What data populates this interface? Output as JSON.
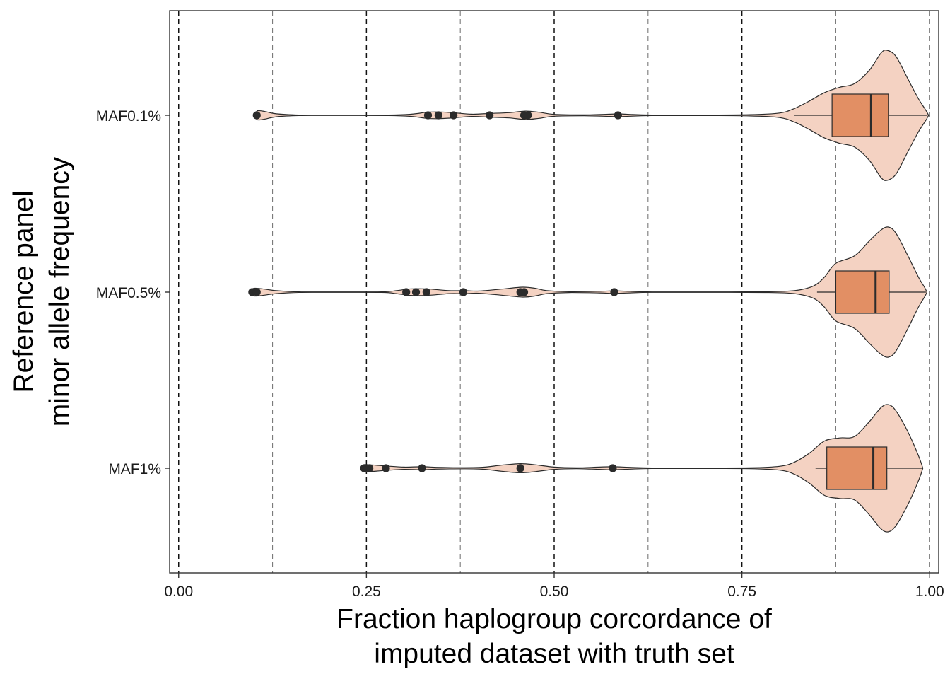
{
  "chart_data": {
    "type": "violin",
    "orientation": "horizontal",
    "xlabel": [
      "Fraction haplogroup corcordance of",
      "imputed dataset with truth set"
    ],
    "ylabel": [
      "Reference panel",
      "minor allele frequency"
    ],
    "xlim": [
      -0.012,
      1.012
    ],
    "x_ticks": [
      0.0,
      0.25,
      0.5,
      0.75,
      1.0
    ],
    "x_tick_labels": [
      "0.00",
      "0.25",
      "0.50",
      "0.75",
      "1.00"
    ],
    "major_gridlines": [
      0.0,
      0.25,
      0.5,
      0.75,
      1.0
    ],
    "minor_gridlines": [
      0.125,
      0.375,
      0.625,
      0.875
    ],
    "grid": "dashed vertical",
    "categories": [
      "MAF0.1%",
      "MAF0.5%",
      "MAF1%"
    ],
    "colors": {
      "violin_fill": "#f4d2c2",
      "box_fill": "#e28f64",
      "outline": "#2b2b2b",
      "point": "#2b2b2b"
    },
    "series": [
      {
        "category": "MAF0.1%",
        "violin_extent": [
          0.102,
          0.997
        ],
        "box": {
          "whisker_low": 0.82,
          "q1": 0.87,
          "median": 0.922,
          "q3": 0.945,
          "whisker_high": 0.997
        },
        "outliers": [
          0.104,
          0.332,
          0.346,
          0.366,
          0.414,
          0.46,
          0.465,
          0.585
        ],
        "density": [
          [
            0.102,
            0.01
          ],
          [
            0.105,
            0.06
          ],
          [
            0.115,
            0.05
          ],
          [
            0.13,
            0.02
          ],
          [
            0.16,
            0.004
          ],
          [
            0.2,
            0.003
          ],
          [
            0.28,
            0.004
          ],
          [
            0.31,
            0.015
          ],
          [
            0.33,
            0.04
          ],
          [
            0.345,
            0.045
          ],
          [
            0.365,
            0.035
          ],
          [
            0.39,
            0.015
          ],
          [
            0.415,
            0.025
          ],
          [
            0.44,
            0.035
          ],
          [
            0.462,
            0.055
          ],
          [
            0.48,
            0.04
          ],
          [
            0.5,
            0.012
          ],
          [
            0.54,
            0.006
          ],
          [
            0.575,
            0.015
          ],
          [
            0.585,
            0.02
          ],
          [
            0.6,
            0.012
          ],
          [
            0.63,
            0.004
          ],
          [
            0.7,
            0.004
          ],
          [
            0.76,
            0.008
          ],
          [
            0.8,
            0.03
          ],
          [
            0.82,
            0.09
          ],
          [
            0.84,
            0.19
          ],
          [
            0.86,
            0.3
          ],
          [
            0.88,
            0.37
          ],
          [
            0.9,
            0.42
          ],
          [
            0.92,
            0.6
          ],
          [
            0.935,
            0.82
          ],
          [
            0.943,
            0.86
          ],
          [
            0.955,
            0.78
          ],
          [
            0.97,
            0.5
          ],
          [
            0.985,
            0.22
          ],
          [
            0.997,
            0.03
          ]
        ]
      },
      {
        "category": "MAF0.5%",
        "violin_extent": [
          0.097,
          0.995
        ],
        "box": {
          "whisker_low": 0.85,
          "q1": 0.875,
          "median": 0.928,
          "q3": 0.946,
          "whisker_high": 0.995
        },
        "outliers": [
          0.098,
          0.104,
          0.303,
          0.316,
          0.33,
          0.379,
          0.455,
          0.46,
          0.58
        ],
        "density": [
          [
            0.097,
            0.01
          ],
          [
            0.1,
            0.05
          ],
          [
            0.11,
            0.045
          ],
          [
            0.13,
            0.02
          ],
          [
            0.16,
            0.004
          ],
          [
            0.2,
            0.003
          ],
          [
            0.27,
            0.004
          ],
          [
            0.29,
            0.02
          ],
          [
            0.305,
            0.04
          ],
          [
            0.32,
            0.045
          ],
          [
            0.335,
            0.04
          ],
          [
            0.36,
            0.02
          ],
          [
            0.38,
            0.02
          ],
          [
            0.4,
            0.015
          ],
          [
            0.43,
            0.04
          ],
          [
            0.458,
            0.065
          ],
          [
            0.475,
            0.05
          ],
          [
            0.49,
            0.02
          ],
          [
            0.52,
            0.006
          ],
          [
            0.56,
            0.01
          ],
          [
            0.58,
            0.018
          ],
          [
            0.6,
            0.01
          ],
          [
            0.63,
            0.003
          ],
          [
            0.7,
            0.003
          ],
          [
            0.78,
            0.005
          ],
          [
            0.82,
            0.02
          ],
          [
            0.845,
            0.08
          ],
          [
            0.86,
            0.2
          ],
          [
            0.875,
            0.38
          ],
          [
            0.9,
            0.48
          ],
          [
            0.92,
            0.68
          ],
          [
            0.935,
            0.82
          ],
          [
            0.945,
            0.86
          ],
          [
            0.955,
            0.78
          ],
          [
            0.97,
            0.5
          ],
          [
            0.985,
            0.2
          ],
          [
            0.995,
            0.03
          ]
        ]
      },
      {
        "category": "MAF1%",
        "violin_extent": [
          0.243,
          0.99
        ],
        "box": {
          "whisker_low": 0.848,
          "q1": 0.863,
          "median": 0.925,
          "q3": 0.943,
          "whisker_high": 0.99
        },
        "outliers": [
          0.247,
          0.254,
          0.276,
          0.324,
          0.455,
          0.578
        ],
        "density": [
          [
            0.243,
            0.01
          ],
          [
            0.246,
            0.045
          ],
          [
            0.255,
            0.045
          ],
          [
            0.275,
            0.03
          ],
          [
            0.3,
            0.015
          ],
          [
            0.325,
            0.02
          ],
          [
            0.35,
            0.01
          ],
          [
            0.4,
            0.01
          ],
          [
            0.43,
            0.04
          ],
          [
            0.455,
            0.06
          ],
          [
            0.475,
            0.045
          ],
          [
            0.5,
            0.015
          ],
          [
            0.53,
            0.006
          ],
          [
            0.56,
            0.015
          ],
          [
            0.578,
            0.02
          ],
          [
            0.6,
            0.012
          ],
          [
            0.63,
            0.004
          ],
          [
            0.7,
            0.004
          ],
          [
            0.76,
            0.006
          ],
          [
            0.8,
            0.025
          ],
          [
            0.82,
            0.08
          ],
          [
            0.84,
            0.2
          ],
          [
            0.86,
            0.36
          ],
          [
            0.88,
            0.4
          ],
          [
            0.9,
            0.42
          ],
          [
            0.92,
            0.62
          ],
          [
            0.935,
            0.8
          ],
          [
            0.945,
            0.84
          ],
          [
            0.955,
            0.76
          ],
          [
            0.97,
            0.5
          ],
          [
            0.982,
            0.24
          ],
          [
            0.99,
            0.03
          ]
        ]
      }
    ]
  }
}
